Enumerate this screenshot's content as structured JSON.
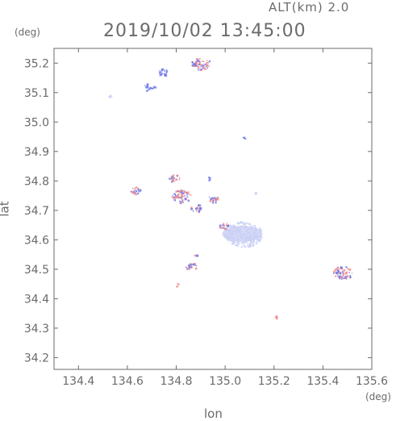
{
  "header": {
    "altitude_label": "ALT(km) 2.0",
    "timestamp": "2019/10/02 13:45:00"
  },
  "chart_data": {
    "type": "heatmap",
    "title": "2019/10/02 13:45:00",
    "subtitle": "ALT(km) 2.0",
    "xlabel": "lon",
    "ylabel": "lat",
    "x_unit": "(deg)",
    "y_unit": "(deg)",
    "xlim": [
      134.3,
      135.6
    ],
    "ylim": [
      34.16,
      35.25
    ],
    "x_ticks": [
      "134.4",
      "134.6",
      "134.8",
      "135.0",
      "135.2",
      "135.4",
      "135.6"
    ],
    "y_ticks": [
      "34.2",
      "34.3",
      "34.4",
      "34.5",
      "34.6",
      "34.7",
      "34.8",
      "34.9",
      "35.0",
      "35.1",
      "35.2"
    ],
    "grid": false,
    "colors": {
      "positive": "#f08a8a",
      "negative": "#6f7ae8",
      "weak": "#c9cff5",
      "frame": "#6b6b6b"
    },
    "echo_clusters": [
      {
        "lon": 134.9,
        "lat": 35.2,
        "polarity": "mixed",
        "extent": "medium"
      },
      {
        "lon": 134.74,
        "lat": 35.17,
        "polarity": "negative",
        "extent": "small"
      },
      {
        "lon": 134.69,
        "lat": 35.12,
        "polarity": "negative",
        "extent": "small"
      },
      {
        "lon": 134.53,
        "lat": 35.09,
        "polarity": "weak",
        "extent": "tiny"
      },
      {
        "lon": 135.08,
        "lat": 34.95,
        "polarity": "negative",
        "extent": "tiny"
      },
      {
        "lon": 134.63,
        "lat": 34.77,
        "polarity": "mixed",
        "extent": "small"
      },
      {
        "lon": 134.79,
        "lat": 34.81,
        "polarity": "mixed",
        "extent": "small"
      },
      {
        "lon": 134.82,
        "lat": 34.75,
        "polarity": "mixed",
        "extent": "medium"
      },
      {
        "lon": 134.88,
        "lat": 34.71,
        "polarity": "mixed",
        "extent": "small"
      },
      {
        "lon": 134.95,
        "lat": 34.74,
        "polarity": "mixed",
        "extent": "small"
      },
      {
        "lon": 134.93,
        "lat": 34.81,
        "polarity": "negative",
        "extent": "tiny"
      },
      {
        "lon": 135.07,
        "lat": 34.62,
        "polarity": "weak",
        "extent": "large"
      },
      {
        "lon": 134.99,
        "lat": 34.65,
        "polarity": "mixed",
        "extent": "small"
      },
      {
        "lon": 134.86,
        "lat": 34.51,
        "polarity": "mixed",
        "extent": "small"
      },
      {
        "lon": 134.88,
        "lat": 34.55,
        "polarity": "mixed",
        "extent": "tiny"
      },
      {
        "lon": 134.8,
        "lat": 34.45,
        "polarity": "positive",
        "extent": "tiny"
      },
      {
        "lon": 135.12,
        "lat": 34.76,
        "polarity": "weak",
        "extent": "tiny"
      },
      {
        "lon": 135.48,
        "lat": 34.49,
        "polarity": "mixed",
        "extent": "medium"
      },
      {
        "lon": 135.21,
        "lat": 34.34,
        "polarity": "positive",
        "extent": "tiny"
      }
    ]
  }
}
